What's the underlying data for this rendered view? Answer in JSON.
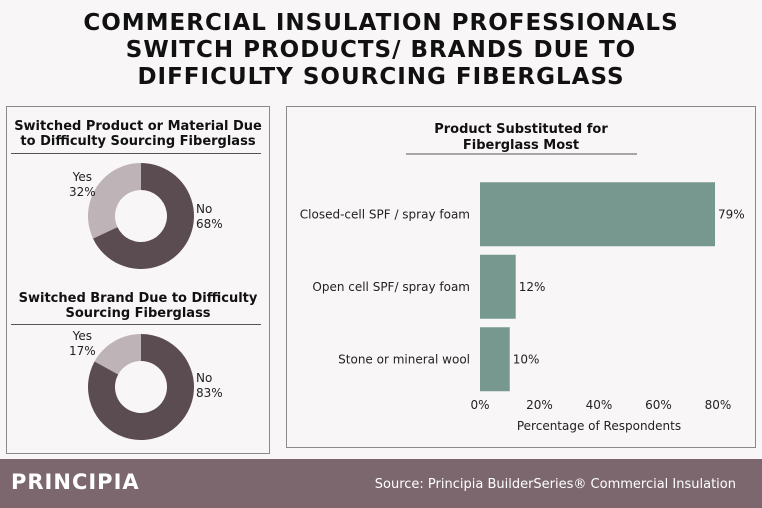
{
  "title": {
    "line1": "COMMERCIAL INSULATION PROFESSIONALS",
    "line2": "SWITCH PRODUCTS/ BRANDS DUE TO",
    "line3": "DIFFICULTY SOURCING FIBERGLASS"
  },
  "footer": {
    "brand": "PRINCIPIA",
    "source": "Source: Principia BuilderSeries® Commercial Insulation"
  },
  "colors": {
    "yes": "#beb3b6",
    "no": "#5b4c52",
    "bar": "#76988f",
    "footer": "#7b676d"
  },
  "chart_data": [
    {
      "type": "pie",
      "title_line1": "Switched Product or Material Due",
      "title_line2": "to Difficulty Sourcing Fiberglass",
      "slices": [
        {
          "label": "Yes",
          "value": 32,
          "display": "32%"
        },
        {
          "label": "No",
          "value": 68,
          "display": "68%"
        }
      ]
    },
    {
      "type": "pie",
      "title_line1": "Switched Brand Due to Difficulty",
      "title_line2": "Sourcing Fiberglass",
      "slices": [
        {
          "label": "Yes",
          "value": 17,
          "display": "17%"
        },
        {
          "label": "No",
          "value": 83,
          "display": "83%"
        }
      ]
    },
    {
      "type": "bar",
      "orientation": "horizontal",
      "title_line1": "Product Substituted for",
      "title_line2": "Fiberglass Most",
      "categories": [
        "Closed-cell SPF / spray foam",
        "Open cell SPF/ spray foam",
        "Stone or mineral wool"
      ],
      "values": [
        79,
        12,
        10
      ],
      "value_labels": [
        "79%",
        "12%",
        "10%"
      ],
      "xlabel": "Percentage of Respondents",
      "xlim": [
        0,
        80
      ],
      "ticks": [
        0,
        20,
        40,
        60,
        80
      ],
      "tick_labels": [
        "0%",
        "20%",
        "40%",
        "60%",
        "80%"
      ],
      "grid": false
    }
  ]
}
